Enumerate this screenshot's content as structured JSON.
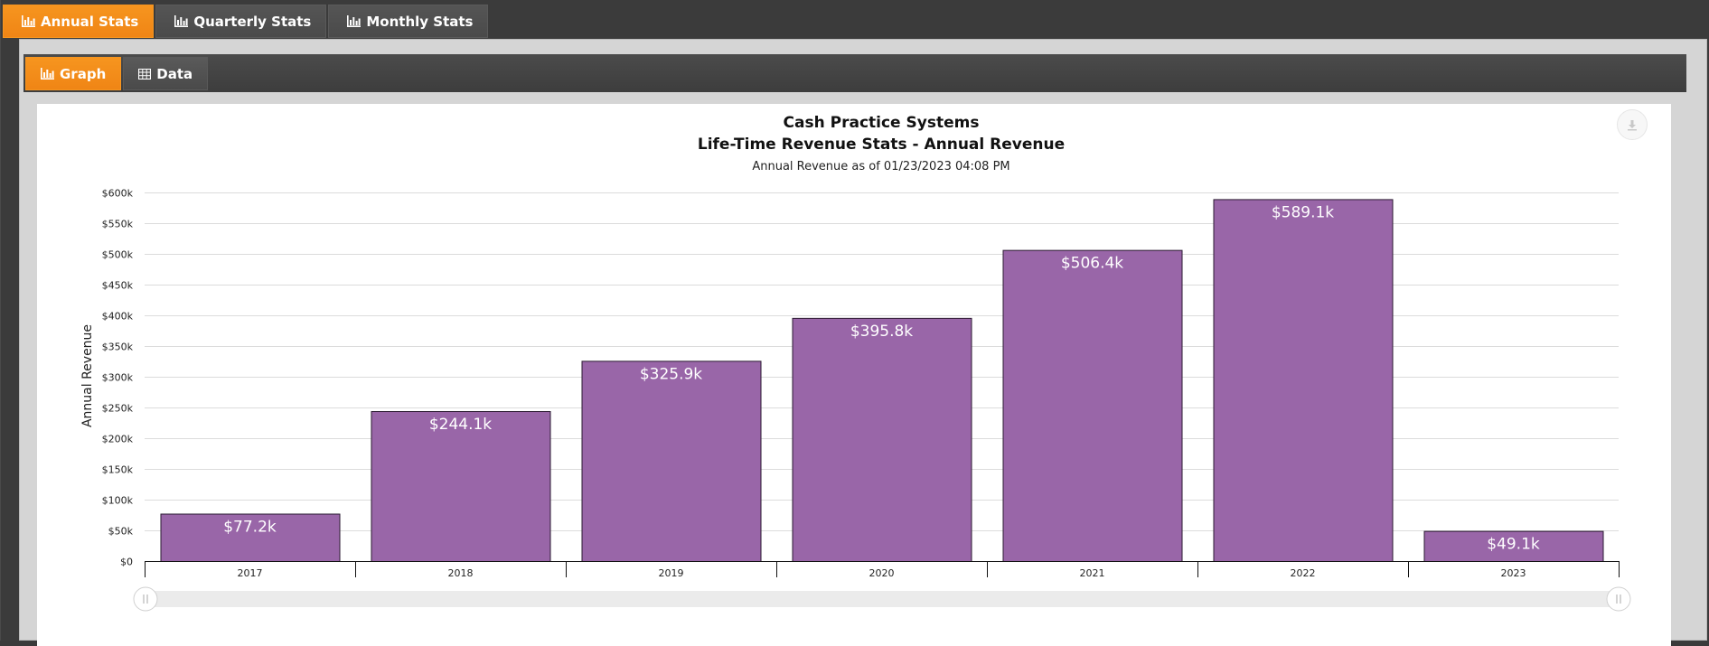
{
  "tabs": [
    {
      "label": "Annual Stats",
      "active": true,
      "icon": "bar-chart-icon"
    },
    {
      "label": "Quarterly Stats",
      "active": false,
      "icon": "bar-chart-icon"
    },
    {
      "label": "Monthly Stats",
      "active": false,
      "icon": "bar-chart-icon"
    }
  ],
  "sub_tabs": [
    {
      "label": "Graph",
      "active": true,
      "icon": "bar-chart-icon"
    },
    {
      "label": "Data",
      "active": false,
      "icon": "table-icon"
    }
  ],
  "colors": {
    "accent": "#f6951f",
    "bar_fill": "#9966a8",
    "bar_stroke": "#2a1a30"
  },
  "chart_data": {
    "type": "bar",
    "title": "Cash Practice Systems",
    "subtitle_main": "Life-Time Revenue Stats - Annual Revenue",
    "subtitle": "Annual Revenue as of 01/23/2023 04:08 PM",
    "ylabel": "Annual Revenue",
    "xlabel": "",
    "ylim": [
      0,
      600
    ],
    "yticks": [
      0,
      50,
      100,
      150,
      200,
      250,
      300,
      350,
      400,
      450,
      500,
      550,
      600
    ],
    "ytick_labels": [
      "$0",
      "$50k",
      "$100k",
      "$150k",
      "$200k",
      "$250k",
      "$300k",
      "$350k",
      "$400k",
      "$450k",
      "$500k",
      "$550k",
      "$600k"
    ],
    "categories": [
      "2017",
      "2018",
      "2019",
      "2020",
      "2021",
      "2022",
      "2023"
    ],
    "values": [
      77.2,
      244.1,
      325.9,
      395.8,
      506.4,
      589.1,
      49.1
    ],
    "data_labels": [
      "$77.2k",
      "$244.1k",
      "$325.9k",
      "$395.8k",
      "$506.4k",
      "$589.1k",
      "$49.1k"
    ],
    "grid": true,
    "legend": "none"
  }
}
